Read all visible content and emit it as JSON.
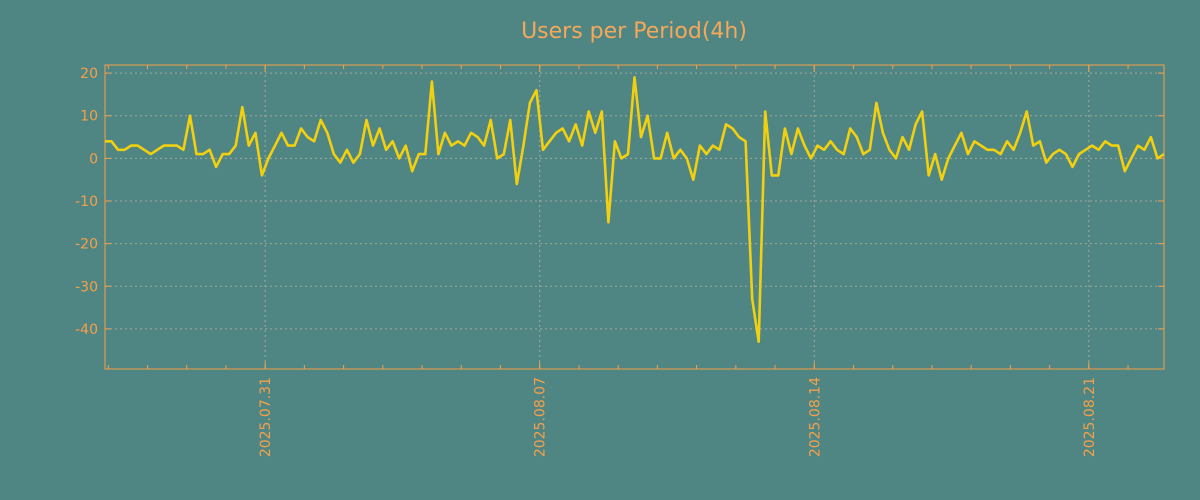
{
  "chart_data": {
    "type": "line",
    "title": "Users per Period(4h)",
    "xlabel": "",
    "ylabel": "",
    "x_start": "2025-07-26T22:00:00",
    "interval_hours": 4,
    "ylim": [
      -49.4,
      21.9
    ],
    "yticks": [
      20,
      10,
      0,
      -10,
      -20,
      -30,
      -40
    ],
    "ytick_labels": [
      "20",
      "10",
      "0",
      "-10",
      "-20",
      "-30",
      "-40"
    ],
    "xticks": [
      "2025-07-31",
      "2025-08-07",
      "2025-08-14",
      "2025-08-21"
    ],
    "xtick_labels": [
      "2025.07.31",
      "2025.08.07",
      "2025.08.14",
      "2025.08.21"
    ],
    "grid": true,
    "colors": {
      "background": "#4f8683",
      "line": "#f2d00f",
      "axis": "#f5a04a",
      "title": "#f5a85a"
    },
    "series": [
      {
        "name": "Users",
        "values": [
          4,
          4,
          2,
          2,
          3,
          3,
          2,
          1,
          2,
          3,
          3,
          3,
          2,
          10,
          1,
          1,
          2,
          -2,
          1,
          1,
          3,
          12,
          3,
          6,
          -4,
          0,
          3,
          6,
          3,
          3,
          7,
          5,
          4,
          9,
          6,
          1,
          -1,
          2,
          -1,
          1,
          9,
          3,
          7,
          2,
          4,
          0,
          3,
          -3,
          1,
          1,
          18,
          1,
          6,
          3,
          4,
          3,
          6,
          5,
          3,
          9,
          0,
          1,
          9,
          -6,
          3,
          13,
          16,
          2,
          4,
          6,
          7,
          4,
          8,
          3,
          11,
          6,
          11,
          -15,
          4,
          0,
          1,
          19,
          5,
          10,
          0,
          0,
          6,
          0,
          2,
          0,
          -5,
          3,
          1,
          3,
          2,
          8,
          7,
          5,
          4,
          -33,
          -43,
          11,
          -4,
          -4,
          7,
          1,
          7,
          3,
          0,
          3,
          2,
          4,
          2,
          1,
          7,
          5,
          1,
          2,
          13,
          6,
          2,
          0,
          5,
          2,
          8,
          11,
          -4,
          1,
          -5,
          0,
          3,
          6,
          1,
          4,
          3,
          2,
          2,
          1,
          4,
          2,
          6,
          11,
          3,
          4,
          -1,
          1,
          2,
          1,
          -2,
          1,
          2,
          3,
          2,
          4,
          3,
          3,
          -3,
          0,
          3,
          2,
          5,
          0,
          1
        ]
      }
    ]
  }
}
